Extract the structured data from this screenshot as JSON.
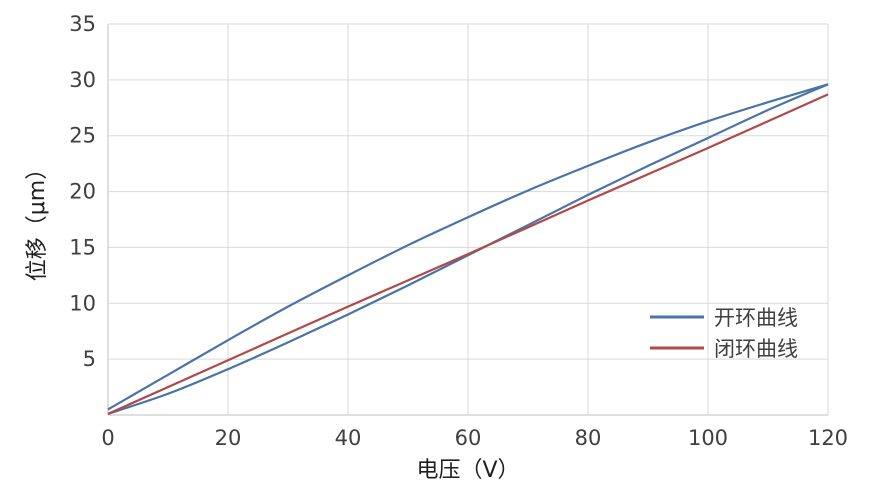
{
  "chart_data": {
    "type": "line",
    "title": "",
    "xlabel": "电压（V）",
    "ylabel": "位移（μm）",
    "xlim": [
      0,
      120
    ],
    "ylim": [
      0,
      35
    ],
    "x_ticks": [
      "0",
      "20",
      "40",
      "60",
      "80",
      "100",
      "120"
    ],
    "y_ticks": [
      "5",
      "10",
      "15",
      "20",
      "25",
      "30",
      "35"
    ],
    "grid": true,
    "legend_position": "bottom-right",
    "series": [
      {
        "name": "开环曲线",
        "color": "#4a74a8",
        "segments": [
          {
            "x": [
              0,
              10,
              20,
              30,
              40,
              50,
              60,
              70,
              80,
              90,
              100,
              110,
              120
            ],
            "y": [
              0.5,
              3.6,
              6.7,
              9.7,
              12.5,
              15.2,
              17.7,
              20.1,
              22.3,
              24.4,
              26.3,
              28.0,
              29.6
            ]
          },
          {
            "x": [
              0,
              10,
              20,
              30,
              40,
              50,
              60,
              70,
              80,
              90,
              100,
              110,
              120
            ],
            "y": [
              0.1,
              1.9,
              4.1,
              6.5,
              9.0,
              11.6,
              14.3,
              17.0,
              19.7,
              22.3,
              24.8,
              27.3,
              29.6
            ]
          }
        ]
      },
      {
        "name": "闭环曲线",
        "color": "#b04a48",
        "segments": [
          {
            "x": [
              0,
              20,
              40,
              60,
              80,
              100,
              120
            ],
            "y": [
              0.1,
              4.9,
              9.7,
              14.4,
              19.2,
              23.9,
              28.7
            ]
          }
        ]
      }
    ]
  }
}
